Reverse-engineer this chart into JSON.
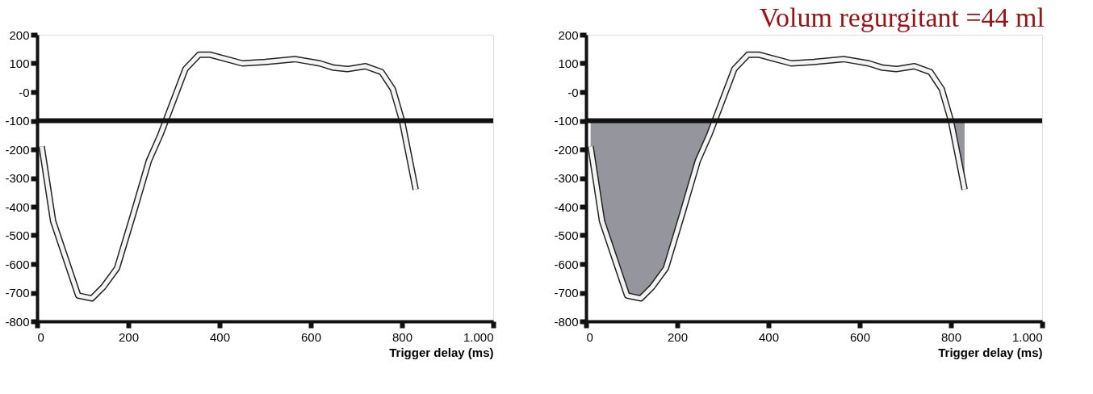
{
  "chart_data": [
    {
      "type": "line",
      "xlabel": "Trigger delay (ms)",
      "xlim": [
        0,
        1000
      ],
      "xticks": [
        0,
        200,
        400,
        600,
        800,
        {
          "value": 1000,
          "label": "1.000"
        }
      ],
      "ylim": [
        -800,
        200
      ],
      "yticks": [
        -800,
        -700,
        -600,
        -500,
        -400,
        -300,
        -200,
        -100,
        {
          "value": 0,
          "label": "-0"
        },
        100,
        200
      ],
      "grid": false,
      "series": [
        {
          "color": "#f4f4f4",
          "x": [
            10,
            35,
            90,
            120,
            145,
            175,
            210,
            245,
            270,
            282,
            325,
            355,
            380,
            450,
            500,
            565,
            620,
            650,
            680,
            720,
            755,
            780,
            800,
            830
          ],
          "values": [
            -190,
            -450,
            -710,
            -720,
            -680,
            -615,
            -430,
            -240,
            -150,
            -100,
            80,
            130,
            130,
            100,
            105,
            115,
            100,
            85,
            80,
            90,
            70,
            10,
            -100,
            -340
          ]
        }
      ],
      "ref_lines": [
        {
          "axis": "y",
          "value": -100,
          "color": "#111111"
        }
      ]
    },
    {
      "type": "line",
      "title": "Volum regurgitant =44 ml",
      "xlabel": "Trigger delay (ms)",
      "xlim": [
        0,
        1000
      ],
      "xticks": [
        0,
        200,
        400,
        600,
        800,
        {
          "value": 1000,
          "label": "1.000"
        }
      ],
      "ylim": [
        -800,
        200
      ],
      "yticks": [
        -800,
        -700,
        -600,
        -500,
        -400,
        -300,
        -200,
        -100,
        {
          "value": 0,
          "label": "-0"
        },
        100,
        200
      ],
      "grid": false,
      "series": [
        {
          "color": "#f4f4f4",
          "x": [
            10,
            35,
            90,
            120,
            145,
            175,
            210,
            245,
            270,
            282,
            325,
            355,
            380,
            450,
            500,
            565,
            620,
            650,
            680,
            720,
            755,
            780,
            800,
            830
          ],
          "values": [
            -190,
            -450,
            -710,
            -720,
            -680,
            -615,
            -430,
            -240,
            -150,
            -100,
            80,
            130,
            130,
            100,
            105,
            115,
            100,
            85,
            80,
            90,
            70,
            10,
            -100,
            -340
          ],
          "lower": [
            -190,
            -450,
            -710,
            -720,
            -680,
            -615,
            -430,
            -240,
            -150,
            -100,
            null,
            null,
            null,
            null,
            null,
            null,
            null,
            null,
            null,
            null,
            null,
            null,
            -100,
            -340
          ],
          "upper": [
            -100,
            -100,
            -100,
            -100,
            -100,
            -100,
            -100,
            -100,
            -100,
            -100,
            null,
            null,
            null,
            null,
            null,
            null,
            null,
            null,
            null,
            null,
            null,
            null,
            -100,
            -100
          ]
        }
      ],
      "ref_lines": [
        {
          "axis": "y",
          "value": -100,
          "color": "#111111"
        }
      ]
    }
  ]
}
